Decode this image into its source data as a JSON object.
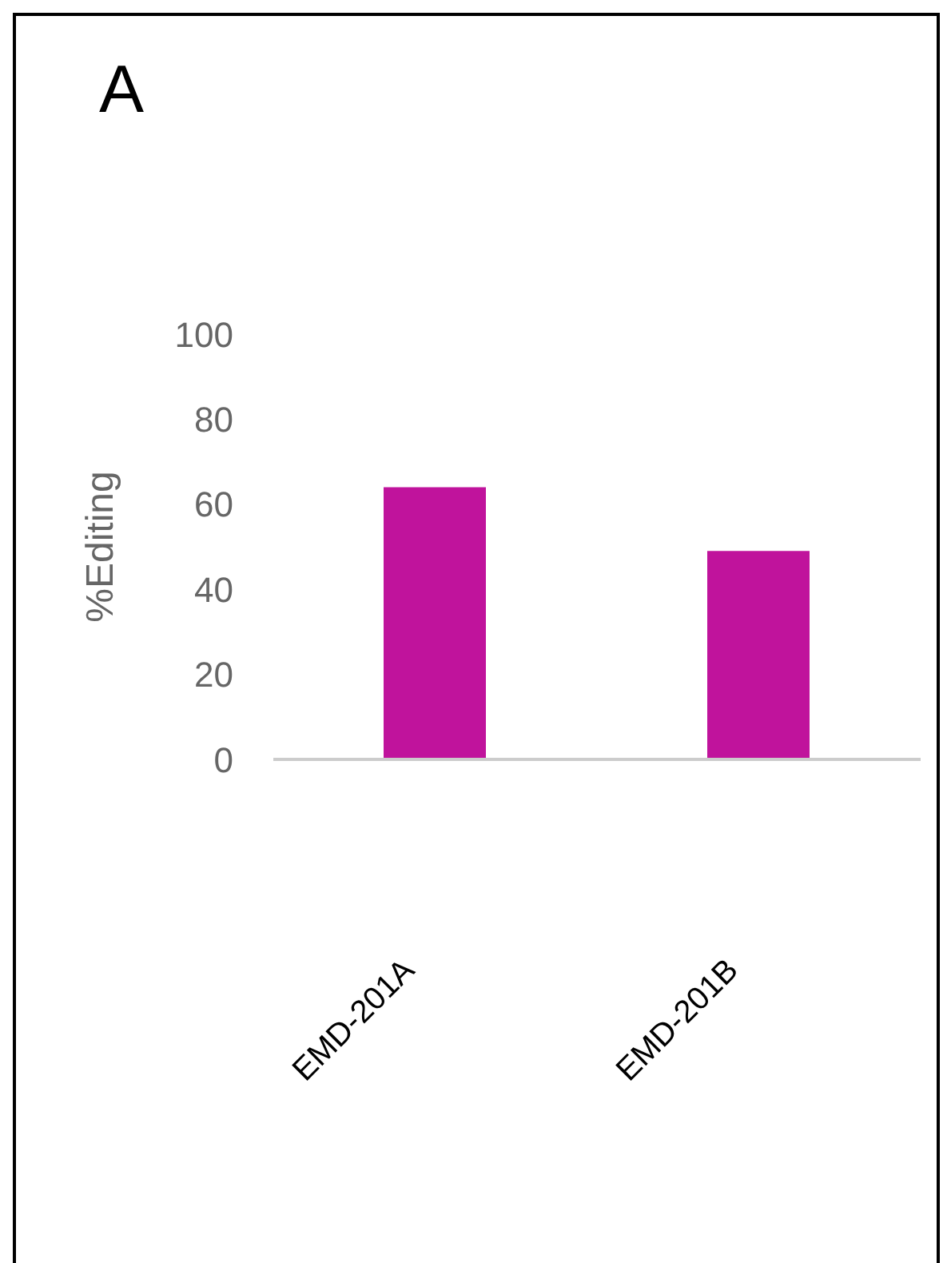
{
  "chart_data": {
    "type": "bar",
    "title": "A",
    "ylabel": "%Editing",
    "categories": [
      "EMD-201A",
      "EMD-201B"
    ],
    "values": [
      64,
      49
    ],
    "color": "#c0139c",
    "ylim": [
      0,
      100
    ],
    "yticks": [
      0,
      20,
      40,
      60,
      80,
      100
    ]
  }
}
